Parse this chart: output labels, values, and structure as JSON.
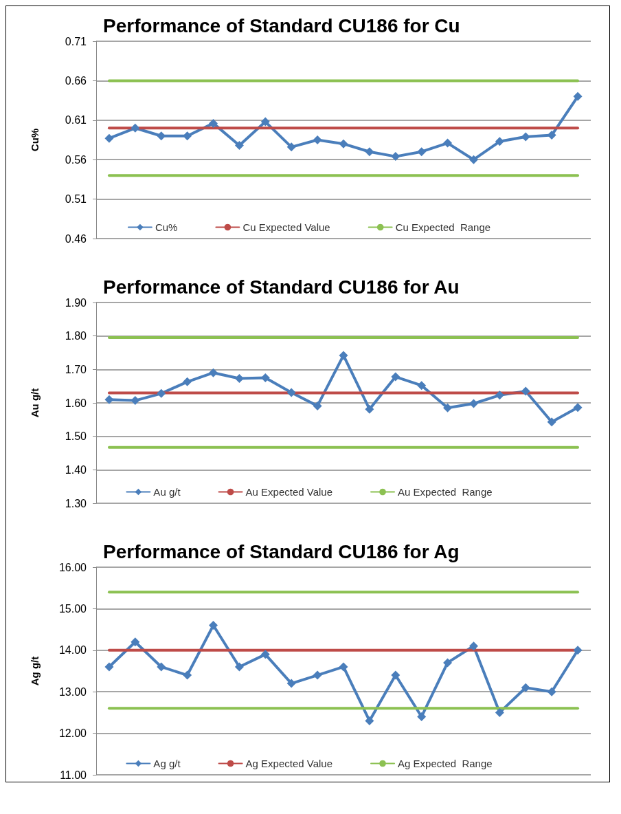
{
  "chart_data": [
    {
      "type": "line",
      "title": "Performance of Standard CU186 for Cu",
      "ylabel": "Cu%",
      "categories": [
        null,
        null,
        null,
        null,
        null,
        null,
        null,
        null,
        null,
        null,
        null,
        null,
        null,
        null,
        null,
        null,
        null,
        null,
        null
      ],
      "series": [
        {
          "name": "Cu%",
          "color": "#4a7ebb",
          "marker": "diamond",
          "values": [
            0.587,
            0.6,
            0.59,
            0.59,
            0.606,
            0.578,
            0.608,
            0.576,
            0.585,
            0.58,
            0.57,
            0.564,
            0.57,
            0.581,
            0.56,
            0.583,
            0.589,
            0.591,
            0.64
          ]
        },
        {
          "name": "Cu Expected Value",
          "color": "#be4b48",
          "marker": "none",
          "values": [
            0.6,
            0.6,
            0.6,
            0.6,
            0.6,
            0.6,
            0.6,
            0.6,
            0.6,
            0.6,
            0.6,
            0.6,
            0.6,
            0.6,
            0.6,
            0.6,
            0.6,
            0.6,
            0.6
          ]
        },
        {
          "name": "Cu Expected  Range",
          "color": "#8cc152",
          "marker": "none",
          "values": [
            0.66,
            0.66,
            0.66,
            0.66,
            0.66,
            0.66,
            0.66,
            0.66,
            0.66,
            0.66,
            0.66,
            0.66,
            0.66,
            0.66,
            0.66,
            0.66,
            0.66,
            0.66,
            0.66
          ]
        },
        {
          "color": "#8cc152",
          "marker": "none",
          "values": [
            0.54,
            0.54,
            0.54,
            0.54,
            0.54,
            0.54,
            0.54,
            0.54,
            0.54,
            0.54,
            0.54,
            0.54,
            0.54,
            0.54,
            0.54,
            0.54,
            0.54,
            0.54,
            0.54
          ]
        }
      ],
      "ylim": [
        0.46,
        0.71
      ],
      "yticks": [
        0.46,
        0.51,
        0.56,
        0.61,
        0.66,
        0.71
      ],
      "grid": "y",
      "legend": "bottom",
      "tick_labels": "y",
      "line_style": "solid"
    },
    {
      "type": "line",
      "title": "Performance of Standard CU186 for Au",
      "ylabel": "Au g/t",
      "categories": [
        null,
        null,
        null,
        null,
        null,
        null,
        null,
        null,
        null,
        null,
        null,
        null,
        null,
        null,
        null,
        null,
        null,
        null,
        null
      ],
      "series": [
        {
          "name": "Au g/t",
          "color": "#4a7ebb",
          "marker": "diamond",
          "values": [
            1.61,
            1.607,
            1.628,
            1.663,
            1.69,
            1.673,
            1.675,
            1.631,
            1.591,
            1.742,
            1.581,
            1.678,
            1.652,
            1.585,
            1.598,
            1.623,
            1.635,
            1.543,
            1.586
          ]
        },
        {
          "name": "Au Expected Value",
          "color": "#be4b48",
          "marker": "none",
          "values": [
            1.63,
            1.63,
            1.63,
            1.63,
            1.63,
            1.63,
            1.63,
            1.63,
            1.63,
            1.63,
            1.63,
            1.63,
            1.63,
            1.63,
            1.63,
            1.63,
            1.63,
            1.63,
            1.63
          ]
        },
        {
          "name": "Au Expected  Range",
          "color": "#8cc152",
          "marker": "none",
          "values": [
            1.795,
            1.795,
            1.795,
            1.795,
            1.795,
            1.795,
            1.795,
            1.795,
            1.795,
            1.795,
            1.795,
            1.795,
            1.795,
            1.795,
            1.795,
            1.795,
            1.795,
            1.795,
            1.795
          ]
        },
        {
          "color": "#8cc152",
          "marker": "none",
          "values": [
            1.467,
            1.467,
            1.467,
            1.467,
            1.467,
            1.467,
            1.467,
            1.467,
            1.467,
            1.467,
            1.467,
            1.467,
            1.467,
            1.467,
            1.467,
            1.467,
            1.467,
            1.467,
            1.467
          ]
        }
      ],
      "ylim": [
        1.3,
        1.9
      ],
      "yticks": [
        {
          "value": 1.3,
          "label": "1.30"
        },
        {
          "value": 1.4,
          "label": "1.40"
        },
        {
          "value": 1.5,
          "label": "1.50"
        },
        {
          "value": 1.6,
          "label": "1.60"
        },
        {
          "value": 1.7,
          "label": "1.70"
        },
        {
          "value": 1.8,
          "label": "1.80"
        },
        {
          "value": 1.9,
          "label": "1.90"
        }
      ],
      "grid": "y",
      "legend": "bottom",
      "tick_labels": "y",
      "line_style": "solid"
    },
    {
      "type": "line",
      "title": "Performance of Standard CU186 for Ag",
      "ylabel": "Ag g/t",
      "categories": [
        null,
        null,
        null,
        null,
        null,
        null,
        null,
        null,
        null,
        null,
        null,
        null,
        null,
        null,
        null,
        null,
        null,
        null,
        null
      ],
      "series": [
        {
          "name": "Ag g/t",
          "color": "#4a7ebb",
          "marker": "diamond",
          "values": [
            13.6,
            14.2,
            13.6,
            13.4,
            14.6,
            13.6,
            13.9,
            13.2,
            13.4,
            13.6,
            12.3,
            13.4,
            12.4,
            13.7,
            14.1,
            12.5,
            13.1,
            13.0,
            14.0
          ]
        },
        {
          "name": "Ag Expected Value",
          "color": "#be4b48",
          "marker": "none",
          "values": [
            14.0,
            14.0,
            14.0,
            14.0,
            14.0,
            14.0,
            14.0,
            14.0,
            14.0,
            14.0,
            14.0,
            14.0,
            14.0,
            14.0,
            14.0,
            14.0,
            14.0,
            14.0,
            14.0
          ]
        },
        {
          "name": "Ag Expected  Range",
          "color": "#8cc152",
          "marker": "none",
          "values": [
            15.4,
            15.4,
            15.4,
            15.4,
            15.4,
            15.4,
            15.4,
            15.4,
            15.4,
            15.4,
            15.4,
            15.4,
            15.4,
            15.4,
            15.4,
            15.4,
            15.4,
            15.4,
            15.4
          ]
        },
        {
          "color": "#8cc152",
          "marker": "none",
          "values": [
            12.6,
            12.6,
            12.6,
            12.6,
            12.6,
            12.6,
            12.6,
            12.6,
            12.6,
            12.6,
            12.6,
            12.6,
            12.6,
            12.6,
            12.6,
            12.6,
            12.6,
            12.6,
            12.6
          ]
        }
      ],
      "ylim": [
        11,
        16
      ],
      "yticks": [
        {
          "value": 11,
          "label": "11.00"
        },
        {
          "value": 12,
          "label": "12.00"
        },
        {
          "value": 13,
          "label": "13.00"
        },
        {
          "value": 14,
          "label": "14.00"
        },
        {
          "value": 15,
          "label": "15.00"
        },
        {
          "value": 16,
          "label": "16.00"
        }
      ],
      "grid": "y",
      "legend": "bottom",
      "tick_labels": "y",
      "line_style": "solid"
    }
  ]
}
